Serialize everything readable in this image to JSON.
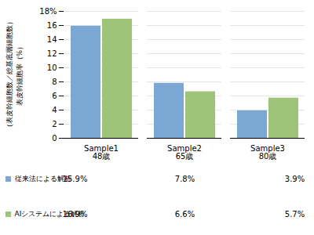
{
  "chart_data": {
    "type": "bar",
    "categories": [
      "Sample1\n48歳",
      "Sample2\n65歳",
      "Sample3\n80歳"
    ],
    "series": [
      {
        "name": "従来法による解析",
        "color": "#7ba7d4",
        "values": [
          15.9,
          7.8,
          3.9
        ],
        "value_labels": [
          "15.9%",
          "7.8%",
          "3.9%"
        ]
      },
      {
        "name": "AIシステムによる解析",
        "color": "#9ec47a",
        "values": [
          16.9,
          6.6,
          5.7
        ],
        "value_labels": [
          "16.9%",
          "6.6%",
          "5.7%"
        ]
      }
    ],
    "ylabel": "（表皮幹細胞数／総基底層細胞数）\n表皮幹細胞率（%）",
    "ylim": [
      0,
      18
    ],
    "yticks": [
      0,
      2,
      4,
      6,
      8,
      10,
      12,
      14,
      16,
      {
        "value": 18,
        "label": "18%"
      }
    ],
    "grid": true,
    "legend": "bottom",
    "data_labels": true
  }
}
